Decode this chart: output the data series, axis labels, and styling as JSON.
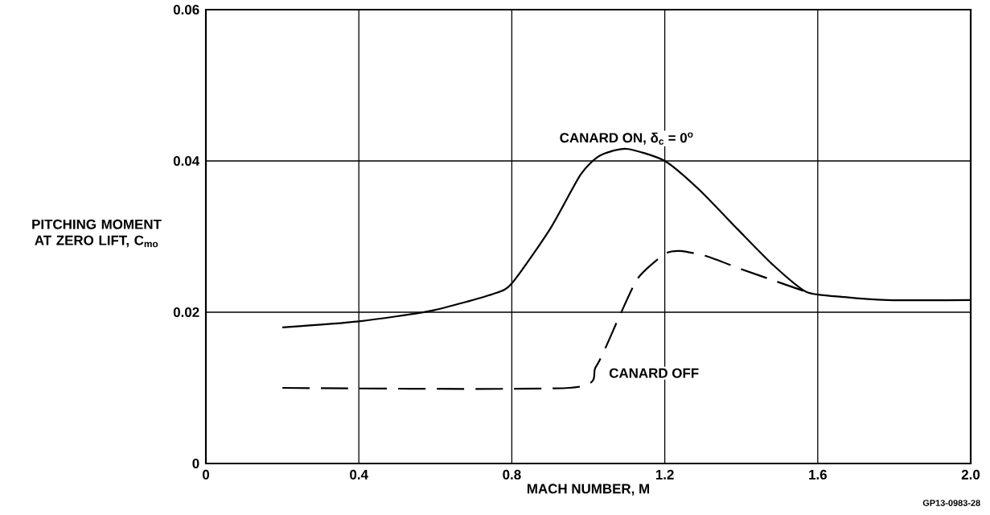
{
  "chart_data": {
    "type": "line",
    "xlabel": "MACH NUMBER, M",
    "ylabel": "PITCHING MOMENT AT ZERO LIFT, C$_{mo}$",
    "xlim": [
      0,
      2.0
    ],
    "ylim": [
      0,
      0.06
    ],
    "xticks": [
      0,
      0.4,
      0.8,
      1.2,
      1.6,
      {
        "value": 2.0,
        "label": "2.0"
      }
    ],
    "yticks": [
      0,
      0.02,
      0.04,
      0.06
    ],
    "grid": true,
    "marker": "none",
    "series": [
      {
        "name": "CANARD ON, δ$_{c}$ = 0$^{o}$",
        "color": "#000000",
        "line_style": "solid",
        "x": [
          0.2,
          0.4,
          0.59,
          0.75,
          0.8,
          0.9,
          0.98,
          1.03,
          1.1,
          1.2,
          1.29,
          1.39,
          1.48,
          1.57,
          1.67,
          1.78,
          2.0
        ],
        "values": [
          0.018,
          0.0188,
          0.0202,
          0.0224,
          0.0238,
          0.031,
          0.0382,
          0.0407,
          0.0416,
          0.04,
          0.0362,
          0.031,
          0.0264,
          0.0227,
          0.022,
          0.0216,
          0.0216
        ]
      },
      {
        "name": "CANARD OFF",
        "color": "#000000",
        "line_style": "dashed",
        "x": [
          0.2,
          0.95,
          1.02,
          1.08,
          1.13,
          1.2,
          1.24,
          1.31,
          1.4,
          1.49,
          1.57
        ],
        "values": [
          0.01,
          0.01,
          0.0128,
          0.0193,
          0.0245,
          0.0277,
          0.0281,
          0.0274,
          0.0257,
          0.0241,
          0.0227
        ]
      }
    ],
    "annotations": [
      "GP13-0983-28"
    ]
  }
}
